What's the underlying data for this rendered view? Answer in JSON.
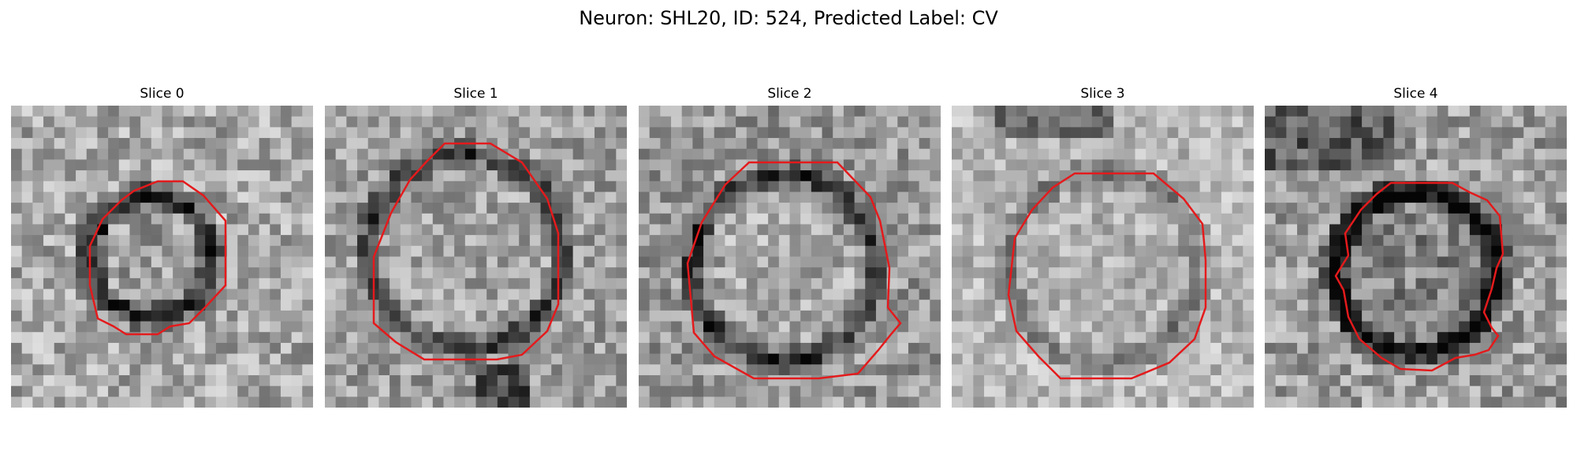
{
  "figure": {
    "title": "Neuron: SHL20, ID: 524, Predicted Label: CV"
  },
  "panels": [
    {
      "title": "Slice 0",
      "variant": "ring-small"
    },
    {
      "title": "Slice 1",
      "variant": "ring-large"
    },
    {
      "title": "Slice 2",
      "variant": "ring-large"
    },
    {
      "title": "Slice 3",
      "variant": "ring-bright"
    },
    {
      "title": "Slice 4",
      "variant": "ring-irregular"
    }
  ],
  "colors": {
    "contour": "#e41a1c",
    "background": "#ffffff"
  }
}
